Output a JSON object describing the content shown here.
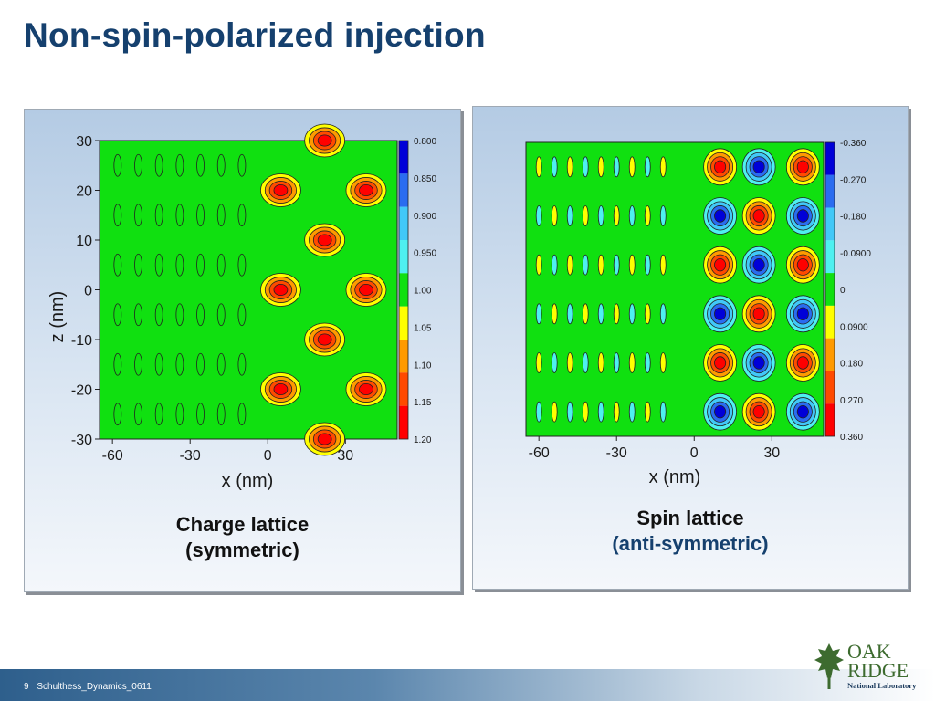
{
  "slide": {
    "title": "Non-spin-polarized injection",
    "footer": {
      "page_number": "9",
      "text": "Schulthess_Dynamics_0611"
    },
    "logo": {
      "line1": "OAK",
      "line2": "RIDGE",
      "line3": "National Laboratory"
    }
  },
  "panels": [
    {
      "caption_line1": "Charge lattice",
      "caption_line2": "(symmetric)"
    },
    {
      "caption_line1": "Spin lattice",
      "caption_line2": "(anti-symmetric)"
    }
  ],
  "chart_data": [
    {
      "type": "heatmap",
      "title": "",
      "xlabel": "x (nm)",
      "ylabel": "z (nm)",
      "xlim": [
        -65,
        50
      ],
      "ylim": [
        -30,
        30
      ],
      "x_ticks": [
        "-60",
        "-30",
        "0",
        "30"
      ],
      "y_ticks": [
        "30",
        "20",
        "10",
        "0",
        "-10",
        "-20",
        "-30"
      ],
      "colorbar": {
        "labels": [
          "0.800",
          "0.850",
          "0.900",
          "0.950",
          "1.00",
          "1.05",
          "1.10",
          "1.15",
          "1.20"
        ],
        "colors": [
          "#0000d8",
          "#2a6cf0",
          "#41c8f8",
          "#4ef0f0",
          "#10e010",
          "#ffff00",
          "#ff9a00",
          "#ff4a00",
          "#ff0000"
        ]
      },
      "features": [
        {
          "x": 22,
          "z": 30,
          "value": 1.2
        },
        {
          "x": 5,
          "z": 20,
          "value": 1.2
        },
        {
          "x": 38,
          "z": 20,
          "value": 1.2
        },
        {
          "x": 22,
          "z": 10,
          "value": 1.2
        },
        {
          "x": 5,
          "z": 0,
          "value": 1.2
        },
        {
          "x": 38,
          "z": 0,
          "value": 1.2
        },
        {
          "x": 22,
          "z": -10,
          "value": 1.2
        },
        {
          "x": 5,
          "z": -20,
          "value": 1.2
        },
        {
          "x": 38,
          "z": -20,
          "value": 1.2
        },
        {
          "x": 22,
          "z": -30,
          "value": 1.2
        }
      ]
    },
    {
      "type": "heatmap",
      "title": "",
      "xlabel": "x (nm)",
      "ylabel": "",
      "xlim": [
        -65,
        50
      ],
      "ylim": [
        -30,
        30
      ],
      "x_ticks": [
        "-60",
        "-30",
        "0",
        "30"
      ],
      "colorbar": {
        "labels": [
          "-0.360",
          "-0.270",
          "-0.180",
          "-0.0900",
          "0",
          "0.0900",
          "0.180",
          "0.270",
          "0.360"
        ],
        "colors": [
          "#0000d8",
          "#2a6cf0",
          "#41c8f8",
          "#4ef0f0",
          "#10e010",
          "#ffff00",
          "#ff9a00",
          "#ff4a00",
          "#ff0000"
        ]
      },
      "features": [
        {
          "x": 10,
          "z": 25,
          "value": 0.36
        },
        {
          "x": 25,
          "z": 25,
          "value": -0.36
        },
        {
          "x": 42,
          "z": 25,
          "value": 0.36
        },
        {
          "x": 10,
          "z": 15,
          "value": -0.36
        },
        {
          "x": 25,
          "z": 15,
          "value": 0.36
        },
        {
          "x": 42,
          "z": 15,
          "value": -0.36
        },
        {
          "x": 10,
          "z": 5,
          "value": 0.36
        },
        {
          "x": 25,
          "z": 5,
          "value": -0.36
        },
        {
          "x": 42,
          "z": 5,
          "value": 0.36
        },
        {
          "x": 10,
          "z": -5,
          "value": -0.36
        },
        {
          "x": 25,
          "z": -5,
          "value": 0.36
        },
        {
          "x": 42,
          "z": -5,
          "value": -0.36
        },
        {
          "x": 10,
          "z": -15,
          "value": 0.36
        },
        {
          "x": 25,
          "z": -15,
          "value": -0.36
        },
        {
          "x": 42,
          "z": -15,
          "value": 0.36
        },
        {
          "x": 10,
          "z": -25,
          "value": -0.36
        },
        {
          "x": 25,
          "z": -25,
          "value": 0.36
        },
        {
          "x": 42,
          "z": -25,
          "value": -0.36
        }
      ]
    }
  ]
}
